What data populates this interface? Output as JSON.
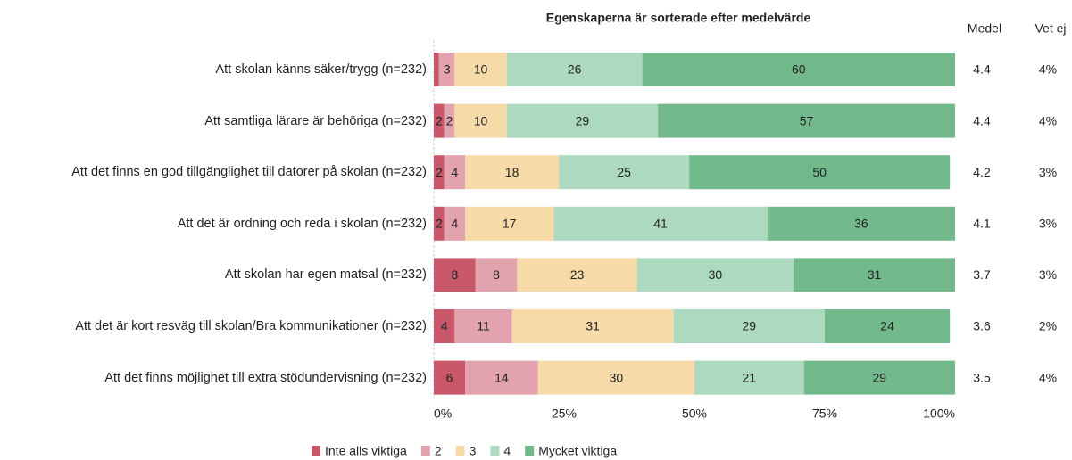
{
  "chart_data": {
    "type": "stacked_barh",
    "title": "Egenskaperna är sorterade efter medelvärde",
    "categories": [
      "Att skolan känns säker/trygg (n=232)",
      "Att samtliga lärare är behöriga (n=232)",
      "Att det finns en god tillgänglighet till datorer på skolan (n=232)",
      "Att det är ordning och reda i skolan (n=232)",
      "Att skolan har egen matsal (n=232)",
      "Att det är kort resväg till skolan/Bra kommunikationer (n=232)",
      "Att det finns möjlighet till extra stödundervisning (n=232)"
    ],
    "series": [
      {
        "name": "Inte alls viktiga",
        "color": "#c9576a",
        "values": [
          1,
          2,
          2,
          2,
          8,
          4,
          6
        ],
        "value_labels": [
          null,
          "2",
          "2",
          "2",
          "8",
          "4",
          "6"
        ]
      },
      {
        "name": "2",
        "color": "#e2a3ae",
        "values": [
          3,
          2,
          4,
          4,
          8,
          11,
          14
        ]
      },
      {
        "name": "3",
        "color": "#f6dba9",
        "values": [
          10,
          10,
          18,
          17,
          23,
          31,
          30
        ]
      },
      {
        "name": "4",
        "color": "#acd9bf",
        "values": [
          26,
          29,
          25,
          41,
          30,
          29,
          21
        ]
      },
      {
        "name": "Mycket viktiga",
        "color": "#72b98b",
        "values": [
          60,
          57,
          50,
          36,
          31,
          24,
          29
        ]
      }
    ],
    "xlim": [
      0,
      100
    ],
    "xticks": [
      {
        "value": 0,
        "label": "0%"
      },
      {
        "value": 25,
        "label": "25%"
      },
      {
        "value": 50,
        "label": "50%"
      },
      {
        "value": 75,
        "label": "75%"
      },
      {
        "value": 100,
        "label": "100%"
      }
    ],
    "columns": [
      {
        "header": "Medel",
        "values": [
          4.4,
          4.4,
          4.2,
          4.1,
          3.7,
          3.6,
          3.5
        ]
      },
      {
        "header": "Vet ej",
        "values": [
          4,
          4,
          3,
          3,
          3,
          2,
          4
        ],
        "value_labels": [
          "4%",
          "4%",
          "3%",
          "3%",
          "3%",
          "2%",
          "4%"
        ]
      }
    ]
  }
}
